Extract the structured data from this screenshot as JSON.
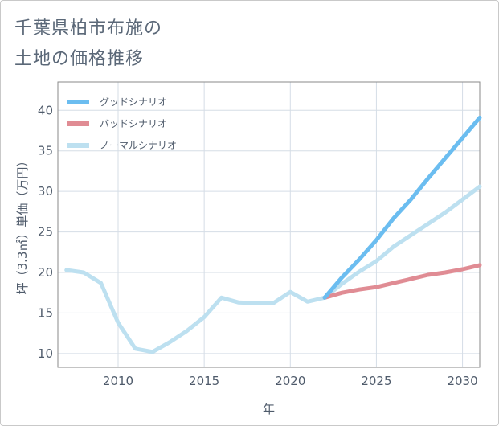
{
  "title_line1": "千葉県柏市布施の",
  "title_line2": "土地の価格推移",
  "chart_data": {
    "type": "line",
    "xlabel": "年",
    "ylabel": "坪（3.3㎡）単価（万円）",
    "xlim": [
      2006.5,
      2031
    ],
    "ylim": [
      8.3,
      43.5
    ],
    "xticks": [
      2010,
      2015,
      2020,
      2025,
      2030
    ],
    "yticks": [
      10,
      15,
      20,
      25,
      30,
      35,
      40
    ],
    "grid": true,
    "legend_position": "top-left",
    "series": [
      {
        "name": "グッドシナリオ",
        "color": "#6bbdf0",
        "x": [
          2022,
          2023,
          2024,
          2025,
          2026,
          2027,
          2028,
          2029,
          2030,
          2031
        ],
        "y": [
          16.9,
          19.4,
          21.6,
          24.0,
          26.7,
          29.0,
          31.6,
          34.1,
          36.6,
          39.1
        ]
      },
      {
        "name": "バッドシナリオ",
        "color": "#e08c94",
        "x": [
          2022,
          2023,
          2024,
          2025,
          2026,
          2027,
          2028,
          2029,
          2030,
          2031
        ],
        "y": [
          16.9,
          17.5,
          17.9,
          18.2,
          18.7,
          19.2,
          19.7,
          20.0,
          20.4,
          20.9
        ]
      },
      {
        "name": "ノーマルシナリオ",
        "color": "#bde0f0",
        "x": [
          2007,
          2008,
          2009,
          2010,
          2011,
          2012,
          2013,
          2014,
          2015,
          2016,
          2017,
          2018,
          2019,
          2020,
          2021,
          2022,
          2023,
          2024,
          2025,
          2026,
          2027,
          2028,
          2029,
          2030,
          2031
        ],
        "y": [
          20.3,
          20.0,
          18.7,
          13.8,
          10.6,
          10.2,
          11.4,
          12.8,
          14.5,
          16.9,
          16.3,
          16.2,
          16.2,
          17.6,
          16.4,
          16.9,
          18.6,
          20.1,
          21.4,
          23.2,
          24.6,
          26.0,
          27.4,
          29.0,
          30.6
        ]
      }
    ]
  }
}
